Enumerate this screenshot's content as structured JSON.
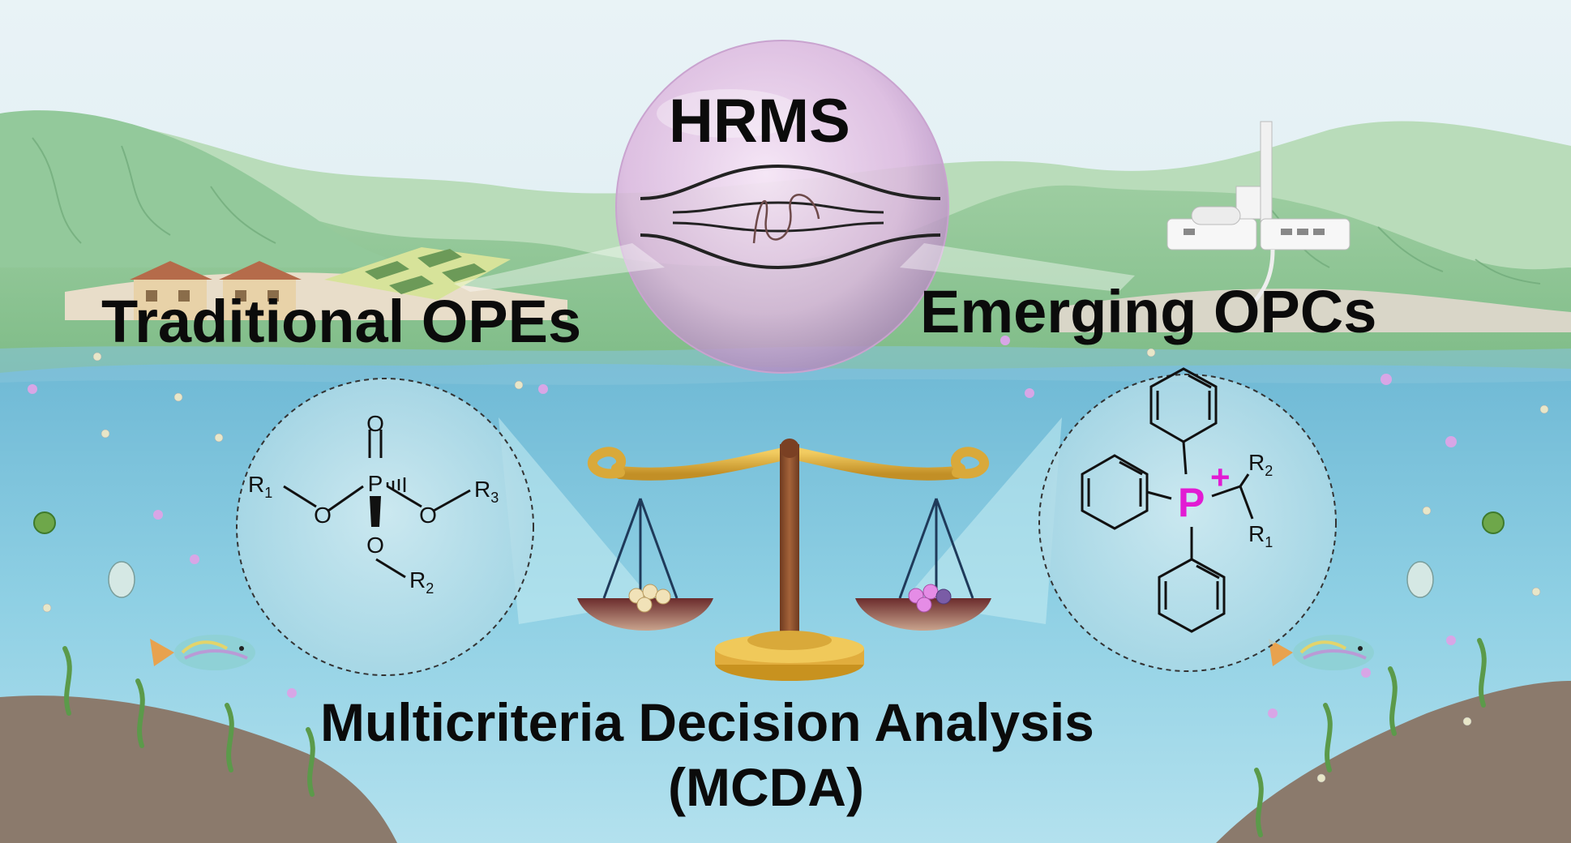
{
  "title_hrms": "HRMS",
  "label_left": "Traditional OPEs",
  "label_right": "Emerging OPCs",
  "bottom_line1": "Multicriteria Decision Analysis",
  "bottom_line2": "(MCDA)",
  "ope_structure": {
    "atom_p": "P",
    "atom_o": "O",
    "r1": "R",
    "r1_sub": "1",
    "r2": "R",
    "r2_sub": "2",
    "r3": "R",
    "r3_sub": "3"
  },
  "opc_structure": {
    "atom_p": "P",
    "charge": "+",
    "r1": "R",
    "r1_sub": "1",
    "r2": "R",
    "r2_sub": "2"
  },
  "colors": {
    "sky": "#dcedf3",
    "hills": "#8fc79a",
    "water": "#7fc6de",
    "ground": "#8b7a6c",
    "bubble": "#e6c4e6",
    "scale": "#d9a93a",
    "scale_post": "#8a4a28",
    "opc_p": "#e21bd3"
  }
}
